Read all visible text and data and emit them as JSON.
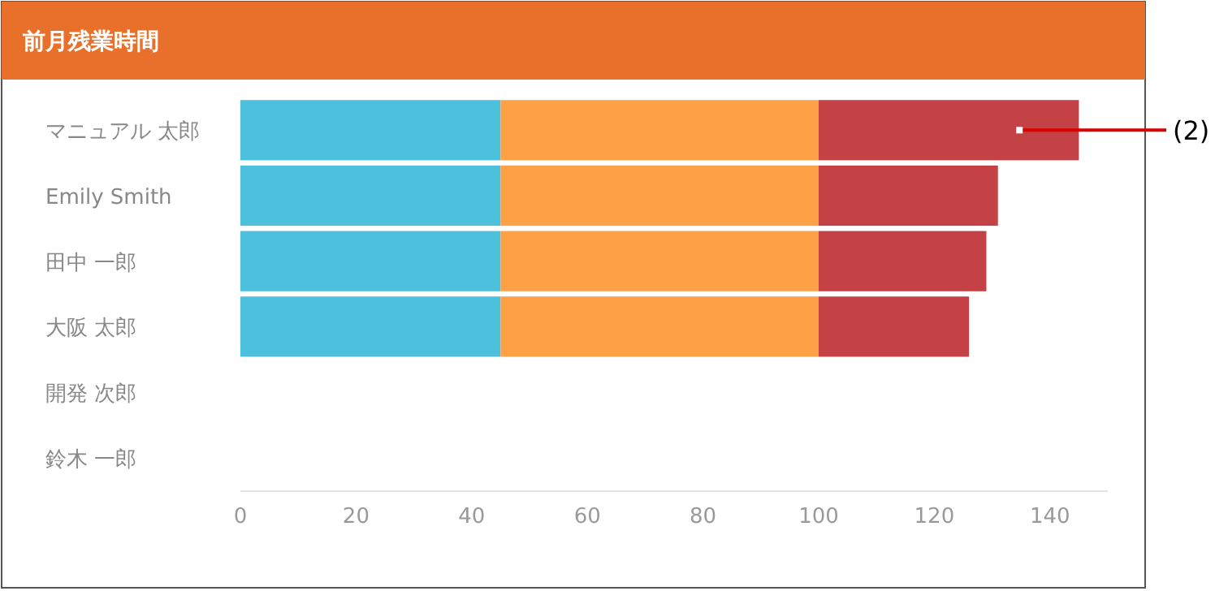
{
  "chart_data": {
    "type": "bar",
    "orientation": "horizontal",
    "stacked": true,
    "title": "前月残業時間",
    "categories": [
      "マニュアル 太郎",
      "Emily Smith",
      "田中 一郎",
      "大阪 太郎",
      "開発 次郎",
      "鈴木 一郎"
    ],
    "series": [
      {
        "color": "#4cc0dd",
        "values": [
          45,
          45,
          45,
          45,
          null,
          null
        ]
      },
      {
        "color": "#fda046",
        "values": [
          55,
          55,
          55,
          55,
          null,
          null
        ]
      },
      {
        "color": "#c44246",
        "values": [
          45,
          31,
          29,
          26,
          null,
          null
        ]
      }
    ],
    "xlim": [
      0,
      150
    ],
    "xticks": [
      0,
      20,
      40,
      60,
      80,
      100,
      120,
      140
    ],
    "grid": false,
    "annotations": [
      {
        "text": "(2)",
        "x": 135,
        "y": "マニュアル 太郎"
      }
    ]
  }
}
